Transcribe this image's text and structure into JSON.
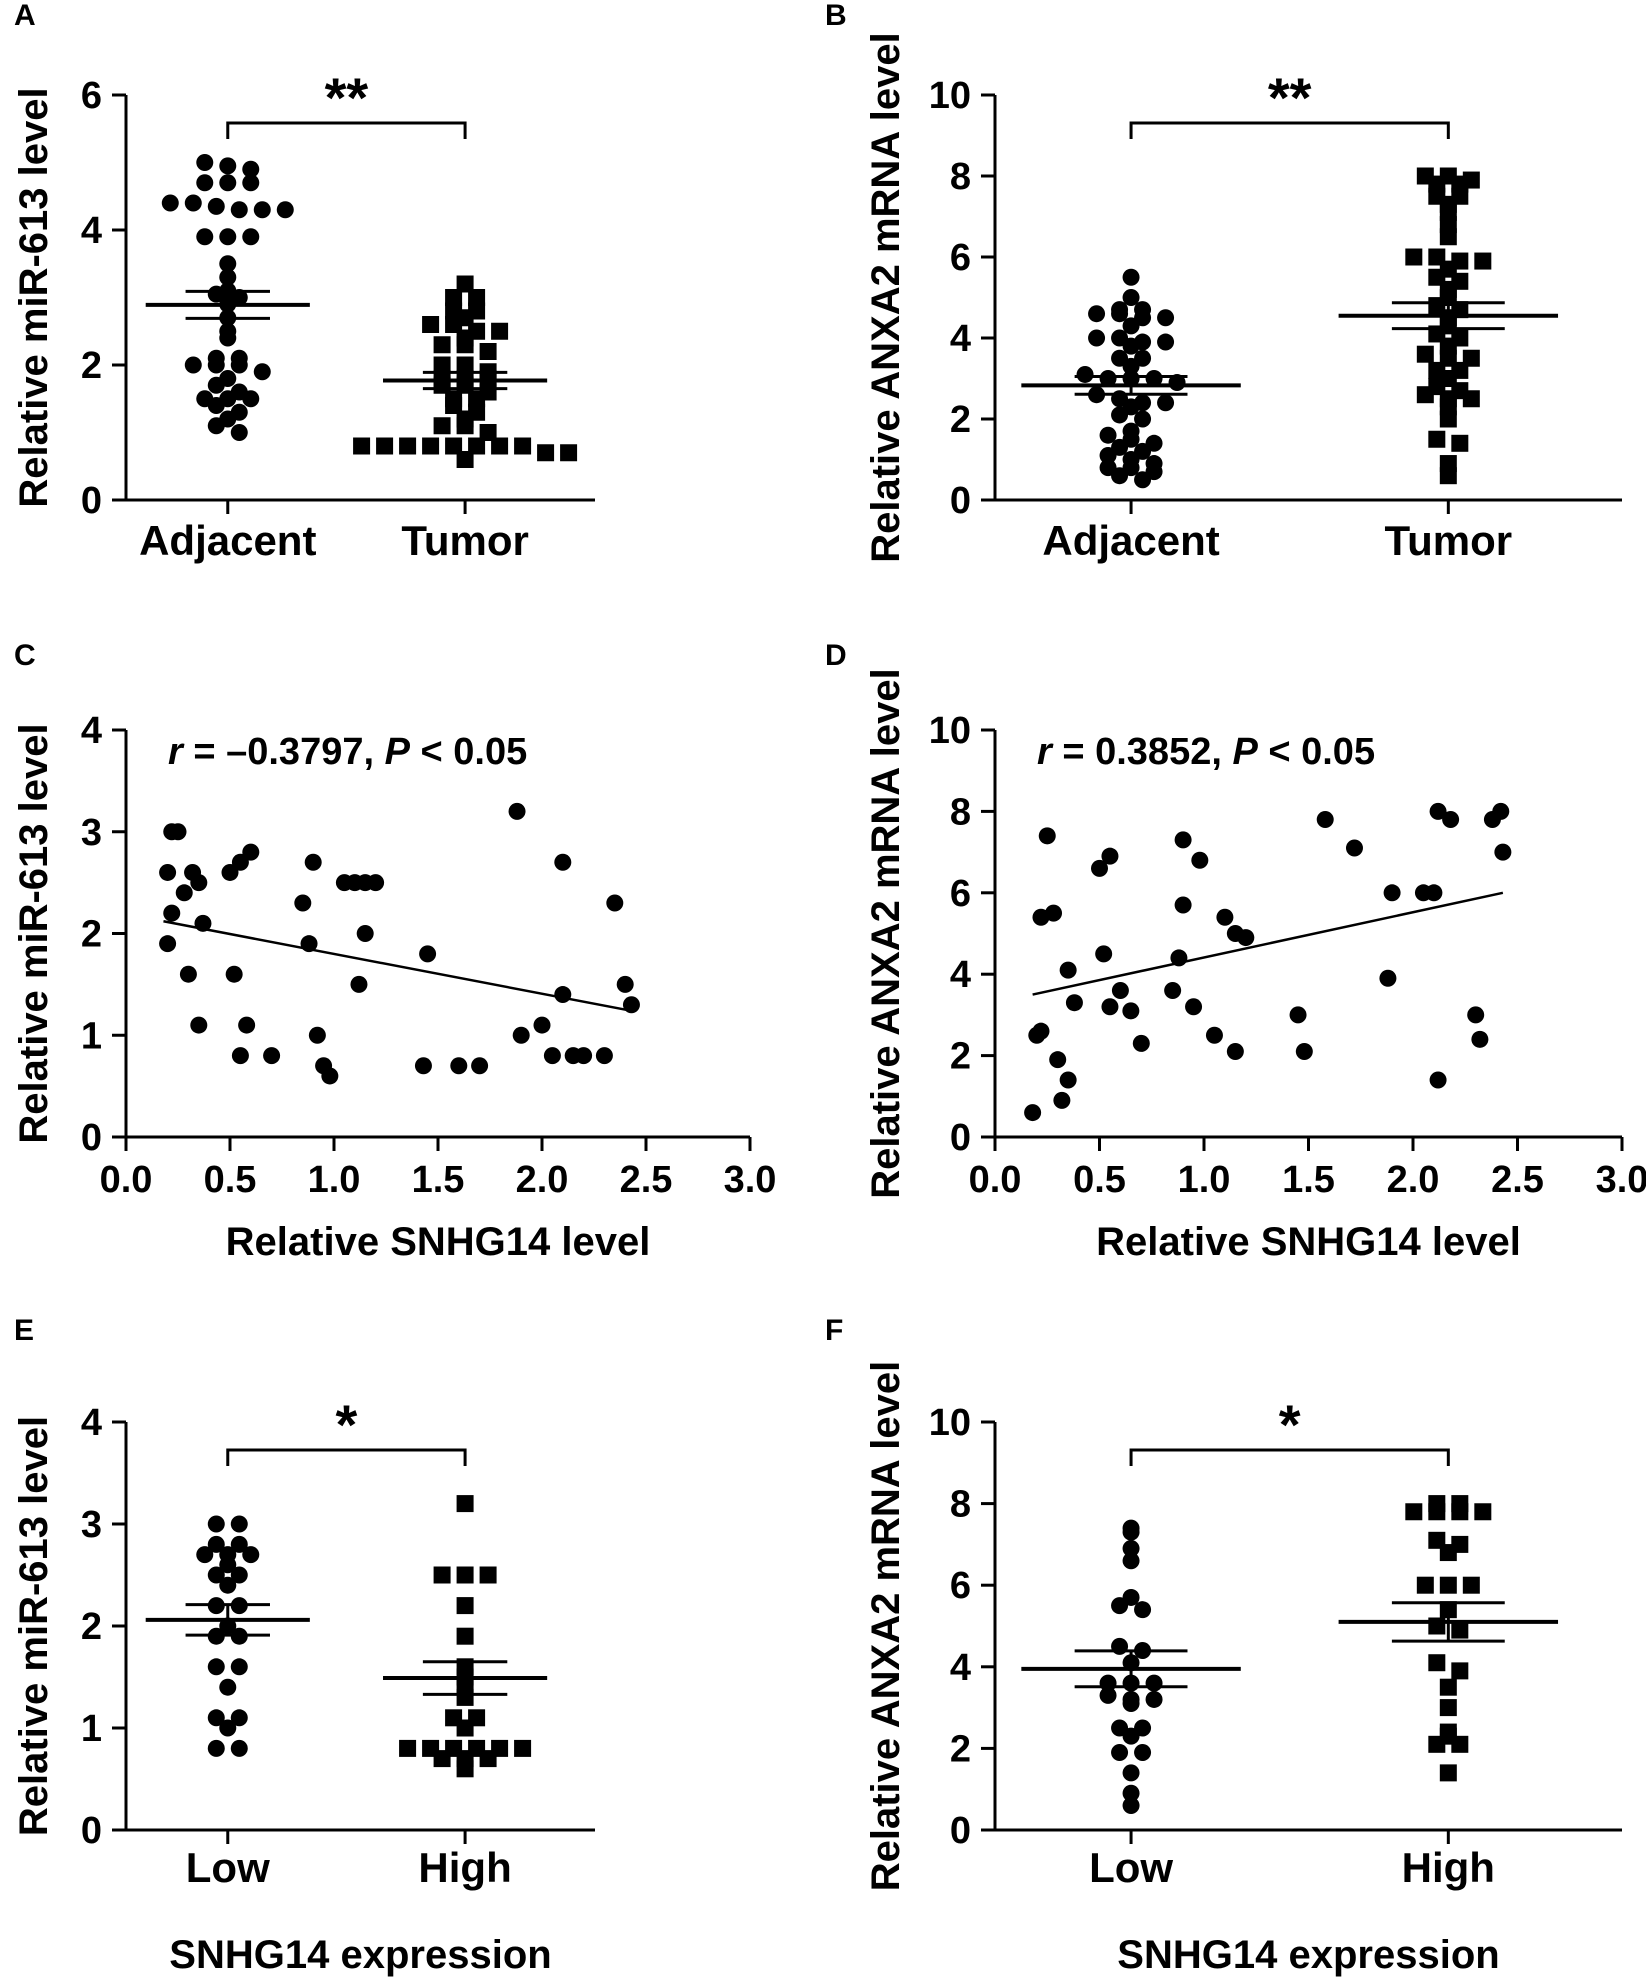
{
  "figure": {
    "panels": [
      {
        "letter": "A",
        "kind": "dot",
        "ylabel": "Relative miR-613 level",
        "xlabel": "",
        "ylim": [
          0,
          6
        ],
        "yticks": [
          "0",
          "2",
          "4",
          "6"
        ],
        "yticks_values": [
          0,
          2,
          4,
          6
        ],
        "categories": [
          "Adjacent",
          "Tumor"
        ],
        "significance": "**",
        "groups": [
          {
            "label": "Adjacent",
            "marker": "circle",
            "mean": 2.89,
            "sem": 0.2,
            "values": [
              5.0,
              4.95,
              4.9,
              4.7,
              4.7,
              4.7,
              4.4,
              4.4,
              4.35,
              4.3,
              4.3,
              4.3,
              3.9,
              3.9,
              3.9,
              3.5,
              3.3,
              3.1,
              3.05,
              3.0,
              2.9,
              2.7,
              2.5,
              2.4,
              2.1,
              2.1,
              2.0,
              2.0,
              2.0,
              1.9,
              1.8,
              1.7,
              1.6,
              1.5,
              1.5,
              1.5,
              1.4,
              1.3,
              1.2,
              1.1,
              1.0
            ]
          },
          {
            "label": "Tumor",
            "marker": "square",
            "mean": 1.77,
            "sem": 0.12,
            "values": [
              3.2,
              3.0,
              3.0,
              2.8,
              2.8,
              2.7,
              2.6,
              2.6,
              2.5,
              2.5,
              2.4,
              2.3,
              2.3,
              2.2,
              2.0,
              2.0,
              1.9,
              1.8,
              1.8,
              1.8,
              1.7,
              1.7,
              1.6,
              1.5,
              1.5,
              1.4,
              1.3,
              1.2,
              1.1,
              1.1,
              1.0,
              0.8,
              0.8,
              0.8,
              0.8,
              0.8,
              0.8,
              0.8,
              0.8,
              0.7,
              0.7,
              0.6
            ]
          }
        ]
      },
      {
        "letter": "B",
        "kind": "dot",
        "ylabel": "Relative ANXA2 mRNA level",
        "xlabel": "",
        "ylim": [
          0,
          10
        ],
        "yticks": [
          "0",
          "2",
          "4",
          "6",
          "8",
          "10"
        ],
        "yticks_values": [
          0,
          2,
          4,
          6,
          8,
          10
        ],
        "categories": [
          "Adjacent",
          "Tumor"
        ],
        "significance": "**",
        "groups": [
          {
            "label": "Adjacent",
            "marker": "circle",
            "mean": 2.83,
            "sem": 0.22,
            "values": [
              5.5,
              5.0,
              4.7,
              4.7,
              4.6,
              4.6,
              4.5,
              4.5,
              4.3,
              4.0,
              4.0,
              3.9,
              3.9,
              3.8,
              3.5,
              3.5,
              3.3,
              3.1,
              3.0,
              3.0,
              3.0,
              2.9,
              2.6,
              2.5,
              2.4,
              2.4,
              2.3,
              2.1,
              2.0,
              1.7,
              1.6,
              1.5,
              1.4,
              1.3,
              1.2,
              1.1,
              1.0,
              0.9,
              0.8,
              0.8,
              0.7,
              0.6,
              0.5
            ]
          },
          {
            "label": "Tumor",
            "marker": "square",
            "mean": 4.55,
            "sem": 0.32,
            "values": [
              8.0,
              8.0,
              7.9,
              7.8,
              7.8,
              7.5,
              7.5,
              7.3,
              7.1,
              6.8,
              6.5,
              6.0,
              6.0,
              5.9,
              5.9,
              5.7,
              5.5,
              5.4,
              5.2,
              5.0,
              4.8,
              4.7,
              4.5,
              4.3,
              4.1,
              4.0,
              3.8,
              3.6,
              3.5,
              3.5,
              3.2,
              3.2,
              3.0,
              2.8,
              2.7,
              2.6,
              2.5,
              2.5,
              2.3,
              2.0,
              1.5,
              1.4,
              0.9,
              0.6
            ]
          }
        ]
      },
      {
        "letter": "C",
        "kind": "scatter",
        "ylabel": "Relative miR-613 level",
        "xlabel": "Relative SNHG14 level",
        "xlim": [
          0,
          3
        ],
        "ylim": [
          0,
          4
        ],
        "xticks": [
          "0.0",
          "0.5",
          "1.0",
          "1.5",
          "2.0",
          "2.5",
          "3.0"
        ],
        "xticks_values": [
          0,
          0.5,
          1.0,
          1.5,
          2.0,
          2.5,
          3.0
        ],
        "yticks": [
          "0",
          "1",
          "2",
          "3",
          "4"
        ],
        "yticks_values": [
          0,
          1,
          2,
          3,
          4
        ],
        "annotation": {
          "r": "r",
          "r_value": " = –0.3797, ",
          "p": "P",
          "p_value": " < 0.05"
        },
        "fit_line": {
          "x": [
            0.18,
            2.43
          ],
          "y": [
            2.12,
            1.24
          ]
        },
        "points": [
          [
            0.2,
            2.6
          ],
          [
            0.22,
            3.0
          ],
          [
            0.25,
            3.0
          ],
          [
            0.22,
            2.2
          ],
          [
            0.2,
            1.9
          ],
          [
            0.28,
            2.4
          ],
          [
            0.32,
            2.6
          ],
          [
            0.35,
            2.5
          ],
          [
            0.37,
            2.1
          ],
          [
            0.3,
            1.6
          ],
          [
            0.35,
            1.1
          ],
          [
            0.5,
            2.6
          ],
          [
            0.55,
            2.7
          ],
          [
            0.6,
            2.8
          ],
          [
            0.52,
            1.6
          ],
          [
            0.58,
            1.1
          ],
          [
            0.55,
            0.8
          ],
          [
            0.7,
            0.8
          ],
          [
            0.85,
            2.3
          ],
          [
            0.9,
            2.7
          ],
          [
            0.88,
            1.9
          ],
          [
            0.92,
            1.0
          ],
          [
            0.95,
            0.7
          ],
          [
            0.98,
            0.6
          ],
          [
            1.05,
            2.5
          ],
          [
            1.1,
            2.5
          ],
          [
            1.15,
            2.5
          ],
          [
            1.2,
            2.5
          ],
          [
            1.15,
            2.0
          ],
          [
            1.12,
            1.5
          ],
          [
            1.45,
            1.8
          ],
          [
            1.43,
            0.7
          ],
          [
            1.6,
            0.7
          ],
          [
            1.7,
            0.7
          ],
          [
            1.88,
            3.2
          ],
          [
            1.9,
            1.0
          ],
          [
            2.0,
            1.1
          ],
          [
            2.05,
            0.8
          ],
          [
            2.1,
            2.7
          ],
          [
            2.1,
            1.4
          ],
          [
            2.15,
            0.8
          ],
          [
            2.2,
            0.8
          ],
          [
            2.3,
            0.8
          ],
          [
            2.35,
            2.3
          ],
          [
            2.4,
            1.5
          ],
          [
            2.43,
            1.3
          ]
        ]
      },
      {
        "letter": "D",
        "kind": "scatter",
        "ylabel": "Relative ANXA2 mRNA level",
        "xlabel": "Relative SNHG14 level",
        "xlim": [
          0,
          3
        ],
        "ylim": [
          0,
          10
        ],
        "xticks": [
          "0.0",
          "0.5",
          "1.0",
          "1.5",
          "2.0",
          "2.5",
          "3.0"
        ],
        "xticks_values": [
          0,
          0.5,
          1.0,
          1.5,
          2.0,
          2.5,
          3.0
        ],
        "yticks": [
          "0",
          "2",
          "4",
          "6",
          "8",
          "10"
        ],
        "yticks_values": [
          0,
          2,
          4,
          6,
          8,
          10
        ],
        "annotation": {
          "r": "r",
          "r_value": " = 0.3852, ",
          "p": "P",
          "p_value": " < 0.05"
        },
        "fit_line": {
          "x": [
            0.18,
            2.43
          ],
          "y": [
            3.5,
            6.0
          ]
        },
        "points": [
          [
            0.18,
            0.6
          ],
          [
            0.2,
            2.5
          ],
          [
            0.22,
            2.6
          ],
          [
            0.22,
            5.4
          ],
          [
            0.28,
            5.5
          ],
          [
            0.25,
            7.4
          ],
          [
            0.3,
            1.9
          ],
          [
            0.32,
            0.9
          ],
          [
            0.35,
            1.4
          ],
          [
            0.35,
            4.1
          ],
          [
            0.38,
            3.3
          ],
          [
            0.5,
            6.6
          ],
          [
            0.55,
            6.9
          ],
          [
            0.52,
            4.5
          ],
          [
            0.55,
            3.2
          ],
          [
            0.6,
            3.6
          ],
          [
            0.65,
            3.1
          ],
          [
            0.7,
            2.3
          ],
          [
            0.85,
            3.6
          ],
          [
            0.88,
            4.4
          ],
          [
            0.9,
            5.7
          ],
          [
            0.9,
            7.3
          ],
          [
            0.95,
            3.2
          ],
          [
            0.98,
            6.8
          ],
          [
            1.05,
            2.5
          ],
          [
            1.1,
            5.4
          ],
          [
            1.15,
            2.1
          ],
          [
            1.15,
            5.0
          ],
          [
            1.2,
            4.9
          ],
          [
            1.45,
            3.0
          ],
          [
            1.48,
            2.1
          ],
          [
            1.58,
            7.8
          ],
          [
            1.72,
            7.1
          ],
          [
            1.88,
            3.9
          ],
          [
            1.9,
            6.0
          ],
          [
            2.05,
            6.0
          ],
          [
            2.1,
            6.0
          ],
          [
            2.12,
            8.0
          ],
          [
            2.12,
            1.4
          ],
          [
            2.18,
            7.8
          ],
          [
            2.3,
            3.0
          ],
          [
            2.32,
            2.4
          ],
          [
            2.38,
            7.8
          ],
          [
            2.42,
            8.0
          ],
          [
            2.43,
            7.0
          ]
        ]
      },
      {
        "letter": "E",
        "kind": "dot",
        "ylabel": "Relative miR-613 level",
        "xlabel": "SNHG14 expression",
        "ylim": [
          0,
          4
        ],
        "yticks": [
          "0",
          "1",
          "2",
          "3",
          "4"
        ],
        "yticks_values": [
          0,
          1,
          2,
          3,
          4
        ],
        "categories": [
          "Low",
          "High"
        ],
        "significance": "*",
        "groups": [
          {
            "label": "Low",
            "marker": "circle",
            "mean": 2.06,
            "sem": 0.15,
            "values": [
              3.0,
              3.0,
              2.8,
              2.8,
              2.7,
              2.7,
              2.7,
              2.6,
              2.5,
              2.5,
              2.4,
              2.2,
              2.2,
              2.0,
              1.9,
              1.9,
              1.6,
              1.6,
              1.4,
              1.1,
              1.1,
              1.0,
              0.8,
              0.8
            ]
          },
          {
            "label": "High",
            "marker": "square",
            "mean": 1.49,
            "sem": 0.16,
            "values": [
              3.2,
              2.5,
              2.5,
              2.5,
              2.2,
              1.9,
              1.6,
              1.5,
              1.4,
              1.3,
              1.1,
              1.1,
              1.0,
              0.8,
              0.8,
              0.8,
              0.8,
              0.8,
              0.8,
              0.7,
              0.7,
              0.7,
              0.6
            ]
          }
        ]
      },
      {
        "letter": "F",
        "kind": "dot",
        "ylabel": "Relative ANXA2 mRNA level",
        "xlabel": "SNHG14 expression",
        "ylim": [
          0,
          10
        ],
        "yticks": [
          "0",
          "2",
          "4",
          "6",
          "8",
          "10"
        ],
        "yticks_values": [
          0,
          2,
          4,
          6,
          8,
          10
        ],
        "categories": [
          "Low",
          "High"
        ],
        "significance": "*",
        "groups": [
          {
            "label": "Low",
            "marker": "circle",
            "mean": 3.95,
            "sem": 0.44,
            "values": [
              7.4,
              7.3,
              6.9,
              6.6,
              5.7,
              5.5,
              5.4,
              4.5,
              4.4,
              4.1,
              3.6,
              3.6,
              3.6,
              3.3,
              3.2,
              3.2,
              3.1,
              2.5,
              2.5,
              2.3,
              1.9,
              1.9,
              1.4,
              0.9,
              0.6
            ]
          },
          {
            "label": "High",
            "marker": "square",
            "mean": 5.1,
            "sem": 0.47,
            "values": [
              8.0,
              8.0,
              7.8,
              7.8,
              7.8,
              7.8,
              7.1,
              7.0,
              6.8,
              6.0,
              6.0,
              6.0,
              5.4,
              5.0,
              4.9,
              4.1,
              3.9,
              3.5,
              3.0,
              2.4,
              2.3,
              2.1,
              2.1,
              1.4
            ]
          }
        ]
      }
    ]
  }
}
